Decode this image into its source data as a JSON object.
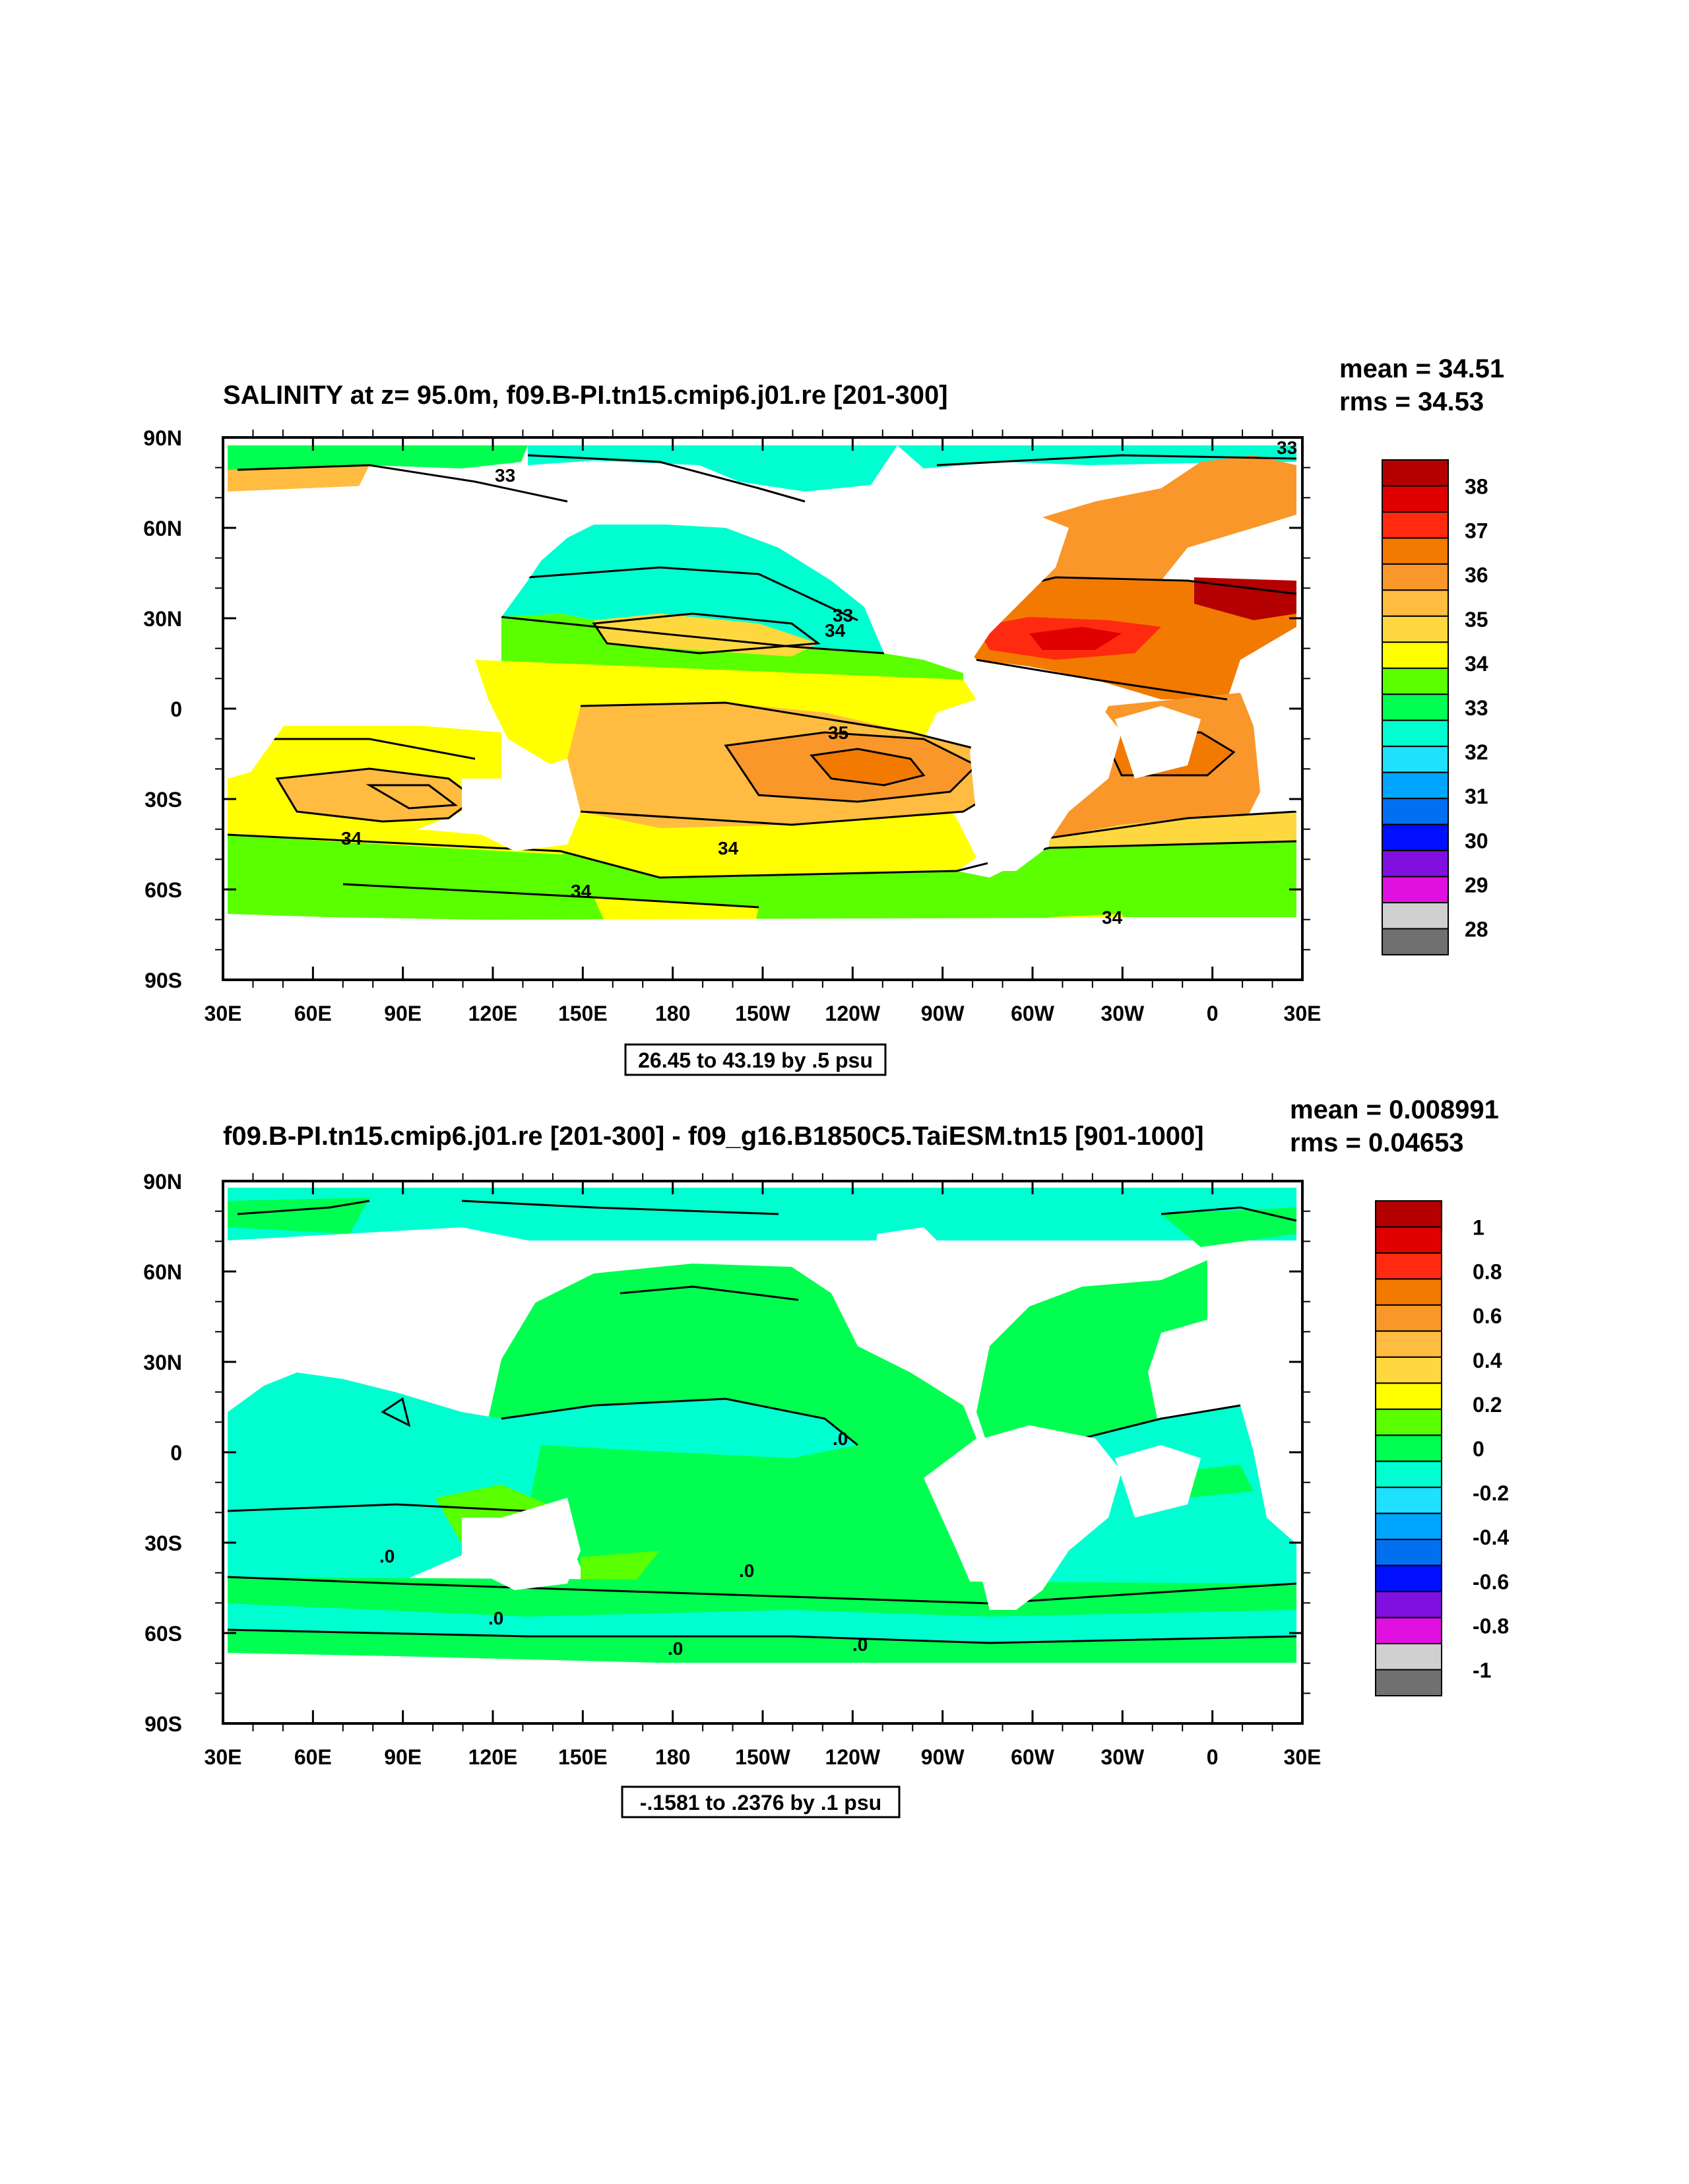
{
  "chart_data": [
    {
      "type": "heatmap",
      "title": "SALINITY at z=  95.0m, f09.B-PI.tn15.cmip6.j01.re [201-300]",
      "stats": {
        "mean": "mean = 34.51",
        "rms": "rms = 34.53"
      },
      "contour_info": "26.45 to 43.19 by .5 psu",
      "x_ticks": [
        "30E",
        "60E",
        "90E",
        "120E",
        "150E",
        "180",
        "150W",
        "120W",
        "90W",
        "60W",
        "30W",
        "0",
        "30E"
      ],
      "y_ticks": [
        "90N",
        "60N",
        "30N",
        "0",
        "30S",
        "60S",
        "90S"
      ],
      "xlim": [
        30,
        390
      ],
      "ylim": [
        -90,
        90
      ],
      "colorbar": {
        "labels": [
          "38",
          "37",
          "36",
          "35",
          "34",
          "33",
          "32",
          "31",
          "30",
          "29",
          "28"
        ],
        "colors": [
          "#b40000",
          "#e00000",
          "#ff2a10",
          "#f27a00",
          "#f9972a",
          "#ffbc40",
          "#ffd840",
          "#ffff00",
          "#5aff00",
          "#00ff50",
          "#00ffd0",
          "#20e0ff",
          "#00a5ff",
          "#0070f0",
          "#0010ff",
          "#8010e0",
          "#e010e0",
          "#d0d0d0",
          "#707070"
        ]
      },
      "contour_labels": [
        "33",
        "33",
        "33",
        "34",
        "35",
        "34",
        "34",
        "34",
        "34"
      ]
    },
    {
      "type": "heatmap",
      "title": "f09.B-PI.tn15.cmip6.j01.re [201-300] - f09_g16.B1850C5.TaiESM.tn15 [901-1000]",
      "stats": {
        "mean": "mean = 0.008991",
        "rms": "rms = 0.04653"
      },
      "contour_info": "-.1581 to .2376 by .1 psu",
      "x_ticks": [
        "30E",
        "60E",
        "90E",
        "120E",
        "150E",
        "180",
        "150W",
        "120W",
        "90W",
        "60W",
        "30W",
        "0",
        "30E"
      ],
      "y_ticks": [
        "90N",
        "60N",
        "30N",
        "0",
        "30S",
        "60S",
        "90S"
      ],
      "xlim": [
        30,
        390
      ],
      "ylim": [
        -90,
        90
      ],
      "colorbar": {
        "labels": [
          "1",
          "0.8",
          "0.6",
          "0.4",
          "0.2",
          "0",
          "-0.2",
          "-0.4",
          "-0.6",
          "-0.8",
          "-1"
        ],
        "colors": [
          "#b40000",
          "#e00000",
          "#ff2a10",
          "#f27a00",
          "#f9972a",
          "#ffbc40",
          "#ffd840",
          "#ffff00",
          "#5aff00",
          "#00ff50",
          "#00ffd0",
          "#20e0ff",
          "#00a5ff",
          "#0070f0",
          "#0010ff",
          "#8010e0",
          "#e010e0",
          "#d0d0d0",
          "#707070"
        ]
      },
      "contour_labels": [
        ".0",
        ".0",
        ".0",
        ".0",
        ".0",
        ".0"
      ]
    }
  ]
}
